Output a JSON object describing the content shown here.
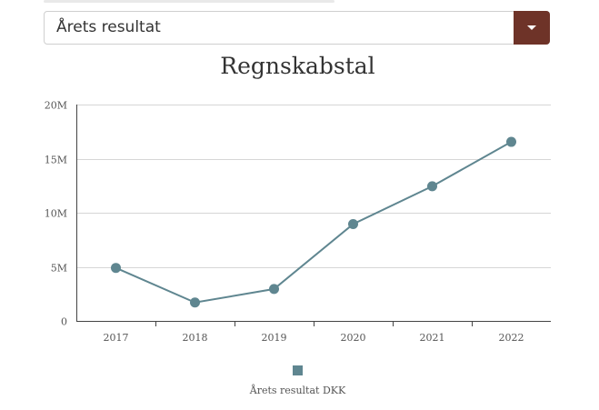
{
  "dropdown": {
    "selected": "Årets resultat"
  },
  "chart_data": {
    "type": "line",
    "title": "Regnskabstal",
    "categories": [
      "2017",
      "2018",
      "2019",
      "2020",
      "2021",
      "2022"
    ],
    "series": [
      {
        "name": "Årets resultat DKK",
        "values": [
          4900000,
          1700000,
          2950000,
          8950000,
          12450000,
          16550000
        ],
        "color": "#5f8690"
      }
    ],
    "ylim": [
      0,
      20000000
    ],
    "yticks": [
      {
        "value": 0,
        "label": "0"
      },
      {
        "value": 5000000,
        "label": "5M"
      },
      {
        "value": 10000000,
        "label": "10M"
      },
      {
        "value": 15000000,
        "label": "15M"
      },
      {
        "value": 20000000,
        "label": "20M"
      }
    ],
    "grid": true,
    "legend_position": "bottom"
  },
  "colors": {
    "accent": "#6e3328",
    "series": "#5f8690",
    "grid": "#d6d6d6"
  }
}
